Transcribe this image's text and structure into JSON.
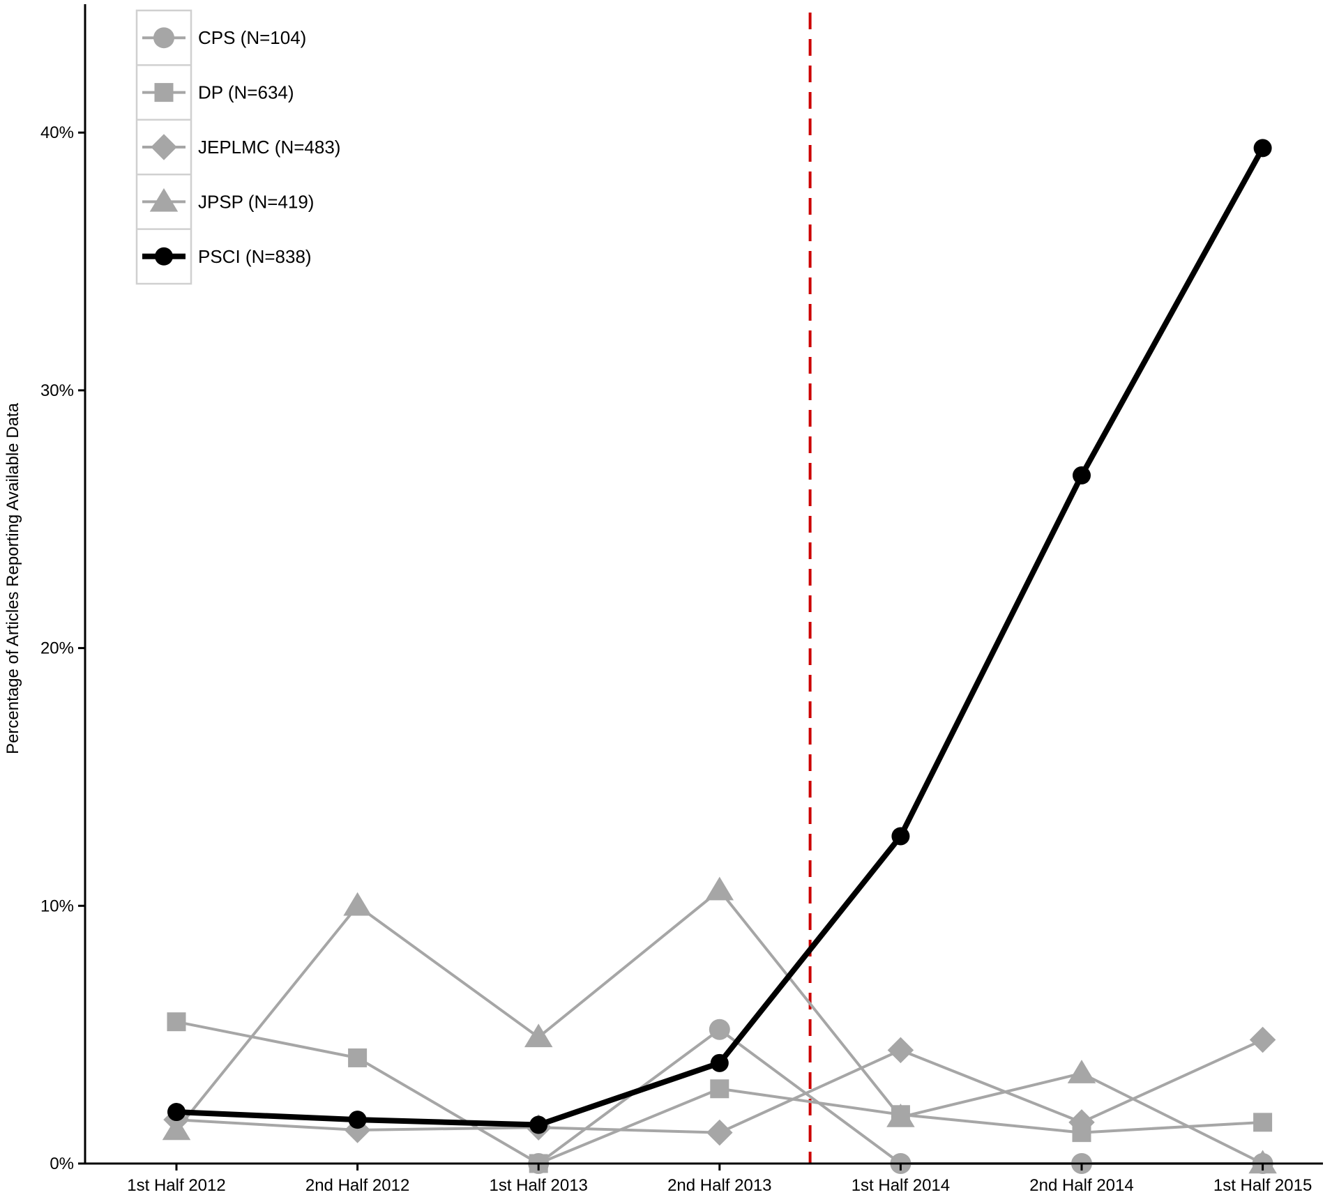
{
  "chart_data": {
    "type": "line",
    "title": "",
    "xlabel": "",
    "ylabel": "Percentage of Articles Reporting Available Data",
    "categories": [
      "1st Half 2012",
      "2nd Half 2012",
      "1st Half 2013",
      "2nd Half 2013",
      "1st Half 2014",
      "2nd Half 2014",
      "1st Half 2015"
    ],
    "ylim": [
      0,
      45
    ],
    "yticks": [
      0,
      10,
      20,
      30,
      40
    ],
    "ytick_labels": [
      "0%",
      "10%",
      "20%",
      "30%",
      "40%"
    ],
    "grid": false,
    "legend_placement": "top-left",
    "reference_line": {
      "x_between": [
        "2nd Half 2013",
        "1st Half 2014"
      ],
      "style": "dashed",
      "color": "#cc0000"
    },
    "series": [
      {
        "name": "CPS (N=104)",
        "marker": "circle",
        "color": "#a6a6a6",
        "values": [
          null,
          null,
          0,
          5.2,
          0,
          0,
          0
        ]
      },
      {
        "name": "DP (N=634)",
        "marker": "square",
        "color": "#a6a6a6",
        "values": [
          5.5,
          4.1,
          0,
          2.9,
          1.9,
          1.2,
          1.6
        ]
      },
      {
        "name": "JEPLMC (N=483)",
        "marker": "diamond",
        "color": "#a6a6a6",
        "values": [
          1.7,
          1.3,
          1.4,
          1.2,
          4.4,
          1.6,
          4.8
        ]
      },
      {
        "name": "JPSP (N=419)",
        "marker": "triangle",
        "color": "#a6a6a6",
        "values": [
          1.3,
          10.0,
          4.9,
          10.6,
          1.8,
          3.5,
          0
        ]
      },
      {
        "name": "PSCI (N=838)",
        "marker": "circle",
        "color": "#000000",
        "values": [
          2.0,
          1.7,
          1.5,
          3.9,
          12.7,
          26.7,
          39.4
        ]
      }
    ]
  }
}
